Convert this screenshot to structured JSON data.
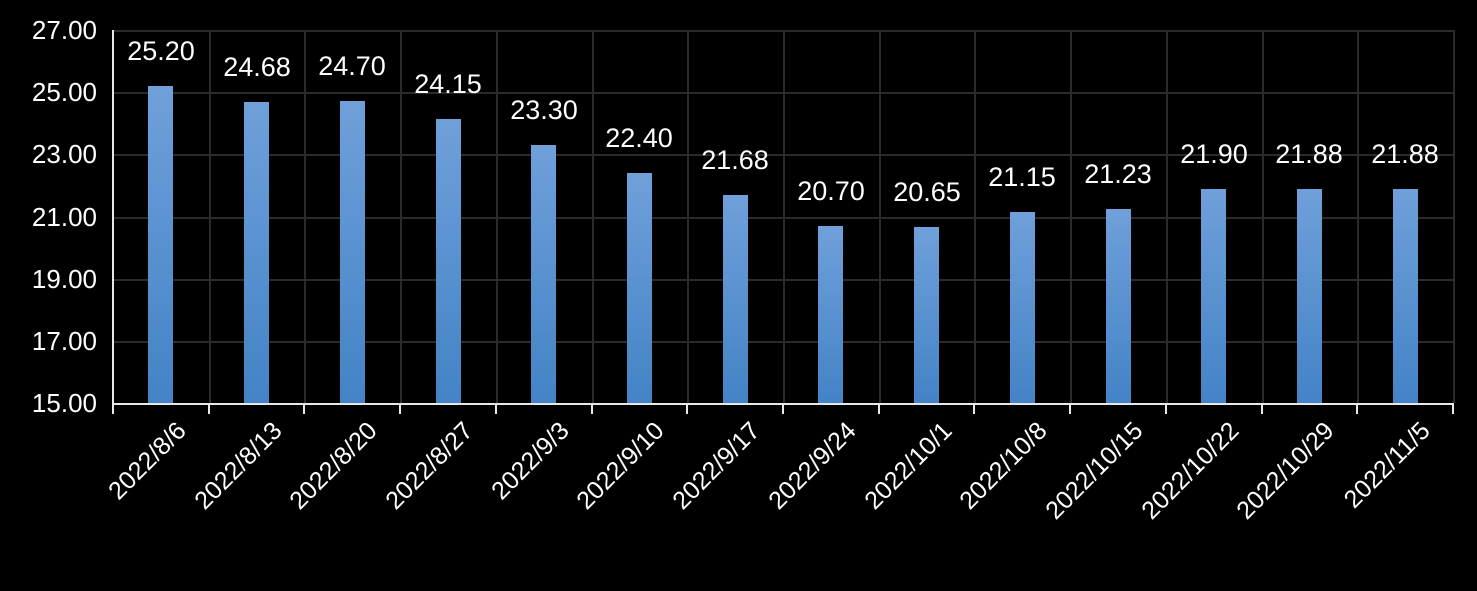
{
  "chart_data": {
    "type": "bar",
    "title": "",
    "xlabel": "",
    "ylabel": "",
    "categories": [
      "2022/8/6",
      "2022/8/13",
      "2022/8/20",
      "2022/8/27",
      "2022/9/3",
      "2022/9/10",
      "2022/9/17",
      "2022/9/24",
      "2022/10/1",
      "2022/10/8",
      "2022/10/15",
      "2022/10/22",
      "2022/10/29",
      "2022/11/5"
    ],
    "values": [
      25.2,
      24.68,
      24.7,
      24.15,
      23.3,
      22.4,
      21.68,
      20.7,
      20.65,
      21.15,
      21.23,
      21.9,
      21.88,
      21.88
    ],
    "value_labels": [
      "25.20",
      "24.68",
      "24.70",
      "24.15",
      "23.30",
      "22.40",
      "21.68",
      "20.70",
      "20.65",
      "21.15",
      "21.23",
      "21.90",
      "21.88",
      "21.88"
    ],
    "ylim": [
      15,
      27
    ],
    "ytick_step": 2,
    "ytick_labels": [
      "15.00",
      "17.00",
      "19.00",
      "21.00",
      "23.00",
      "25.00",
      "27.00"
    ],
    "grid": true,
    "legend_position": "none",
    "colors": {
      "background": "#000000",
      "bar_gradient_top": "#6FA0DA",
      "bar_gradient_bottom": "#4383C6",
      "gridline": "#2b2b2b",
      "axis_line": "#e8e8e8",
      "tick": "#e8e8e8",
      "label_text": "#ffffff"
    }
  }
}
